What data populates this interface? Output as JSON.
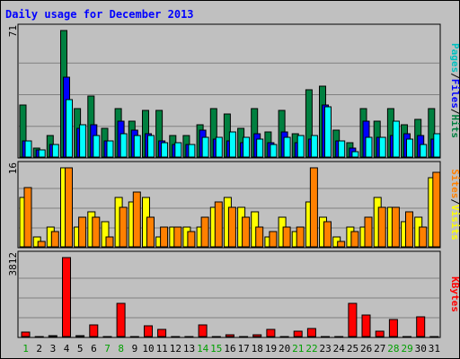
{
  "chart_data": {
    "type": "bar",
    "title": "Daily usage for December 2013",
    "categories": [
      "1",
      "2",
      "3",
      "4",
      "5",
      "6",
      "7",
      "8",
      "9",
      "10",
      "11",
      "12",
      "13",
      "14",
      "15",
      "16",
      "17",
      "18",
      "19",
      "20",
      "21",
      "22",
      "23",
      "24",
      "25",
      "26",
      "27",
      "28",
      "29",
      "30",
      "31"
    ],
    "weekend_days": [
      "1",
      "7",
      "8",
      "14",
      "15",
      "21",
      "22",
      "28",
      "29"
    ],
    "panels": [
      {
        "id": "hits",
        "max_label": "71",
        "ylim": [
          0,
          71
        ],
        "axis_labels": [
          {
            "text": "Pages",
            "color": "#00c0c0"
          },
          {
            "text": "/",
            "color": "#000000"
          },
          {
            "text": "Files",
            "color": "#0000ff"
          },
          {
            "text": "/",
            "color": "#000000"
          },
          {
            "text": "Hits",
            "color": "#008040"
          }
        ],
        "series": [
          {
            "name": "Hits",
            "color": "#008040",
            "values": [
              29,
              5,
              12,
              71,
              27,
              34,
              16,
              27,
              20,
              26,
              26,
              12,
              12,
              18,
              27,
              24,
              16,
              27,
              14,
              26,
              13,
              38,
              40,
              15,
              8,
              27,
              20,
              27,
              18,
              21,
              27
            ]
          },
          {
            "name": "Files",
            "color": "#0000ff",
            "values": [
              9,
              4,
              7,
              45,
              16,
              18,
              9,
              20,
              15,
              13,
              9,
              7,
              7,
              15,
              10,
              9,
              8,
              13,
              8,
              14,
              8,
              10,
              29,
              9,
              5,
              20,
              11,
              12,
              13,
              12,
              10
            ]
          },
          {
            "name": "Pages",
            "color": "#00ffff",
            "values": [
              9,
              4,
              7,
              32,
              18,
              12,
              9,
              13,
              12,
              12,
              8,
              8,
              7,
              11,
              11,
              14,
              11,
              10,
              7,
              11,
              12,
              12,
              28,
              9,
              3,
              11,
              11,
              20,
              10,
              7,
              13
            ]
          }
        ]
      },
      {
        "id": "visits",
        "max_label": "16",
        "ylim": [
          0,
          16
        ],
        "axis_labels": [
          {
            "text": "Sites",
            "color": "#ff8000"
          },
          {
            "text": "/",
            "color": "#000000"
          },
          {
            "text": "Visits",
            "color": "#ffff00"
          }
        ],
        "series": [
          {
            "name": "Visits",
            "color": "#ffff00",
            "values": [
              10,
              2,
              4,
              16,
              4,
              7,
              5,
              10,
              9,
              10,
              2,
              4,
              4,
              4,
              8,
              10,
              8,
              7,
              2,
              6,
              3,
              9,
              6,
              2,
              4,
              4,
              10,
              8,
              5,
              6,
              14
            ]
          },
          {
            "name": "Sites",
            "color": "#ff8000",
            "values": [
              12,
              1,
              3,
              16,
              6,
              6,
              2,
              8,
              11,
              6,
              4,
              4,
              3,
              6,
              9,
              8,
              6,
              4,
              3,
              4,
              4,
              16,
              5,
              1,
              3,
              6,
              8,
              8,
              7,
              4,
              15
            ]
          }
        ]
      },
      {
        "id": "kbytes",
        "max_label": "3812",
        "ylim": [
          0,
          3812
        ],
        "axis_labels": [
          {
            "text": "KBytes",
            "color": "#ff0000"
          }
        ],
        "series": [
          {
            "name": "KBytes",
            "color": "#ff0000",
            "values": [
              230,
              0,
              60,
              3812,
              50,
              580,
              0,
              1620,
              0,
              520,
              330,
              0,
              0,
              560,
              0,
              80,
              0,
              80,
              360,
              0,
              260,
              380,
              0,
              0,
              1610,
              1030,
              260,
              810,
              0,
              960,
              0
            ]
          }
        ]
      }
    ]
  }
}
